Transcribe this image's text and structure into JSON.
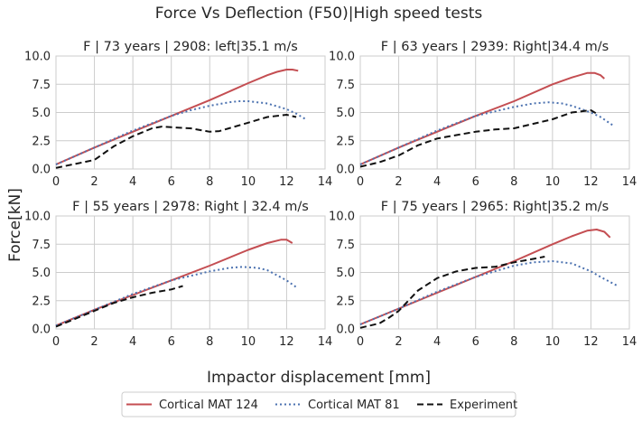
{
  "chart_data": {
    "type": "line",
    "title": "Force Vs Deflection (F50)|High speed tests",
    "xlabel": "Impactor displacement [mm]",
    "ylabel": "Force[kN]",
    "legend_placement": "bottom-center",
    "grid": true,
    "styles": {
      "Cortical MAT 124": {
        "color": "#c44e52",
        "dash": "solid"
      },
      "Cortical MAT 81": {
        "color": "#4c72b0",
        "dash": "dotted"
      },
      "Experiment": {
        "color": "#111111",
        "dash": "dashed"
      }
    },
    "legend": [
      "Cortical MAT 124",
      "Cortical MAT 81",
      "Experiment"
    ],
    "xlim": [
      0,
      14
    ],
    "ylim": [
      0,
      10
    ],
    "xticks": [
      "0",
      "2",
      "4",
      "6",
      "8",
      "10",
      "12",
      "14"
    ],
    "yticks": [
      "0.0",
      "2.5",
      "5.0",
      "7.5",
      "10.0"
    ],
    "panels": [
      {
        "title": "F | 73 years | 2908: left|35.1 m/s",
        "series": [
          {
            "name": "Cortical MAT 124",
            "x": [
              0,
              2,
              4,
              6,
              8,
              10,
              11,
              11.5,
              12,
              12.3,
              12.6
            ],
            "y": [
              0.4,
              1.9,
              3.3,
              4.7,
              6.1,
              7.6,
              8.3,
              8.6,
              8.8,
              8.8,
              8.7
            ]
          },
          {
            "name": "Cortical MAT 81",
            "x": [
              0,
              2,
              4,
              6,
              7,
              8,
              9,
              9.5,
              10,
              11,
              12,
              12.5,
              13
            ],
            "y": [
              0.4,
              1.9,
              3.4,
              4.7,
              5.2,
              5.6,
              5.9,
              6.0,
              6.0,
              5.8,
              5.3,
              4.9,
              4.4
            ]
          },
          {
            "name": "Experiment",
            "x": [
              0,
              2,
              3,
              4,
              5,
              5.5,
              6,
              7,
              8,
              8.5,
              9,
              10,
              11,
              12,
              12.5
            ],
            "y": [
              0.1,
              0.8,
              2.0,
              2.9,
              3.6,
              3.75,
              3.7,
              3.6,
              3.3,
              3.35,
              3.6,
              4.1,
              4.6,
              4.8,
              4.6
            ]
          }
        ]
      },
      {
        "title": "F | 63 years | 2939: Right|34.4 m/s",
        "series": [
          {
            "name": "Cortical MAT 124",
            "x": [
              0,
              2,
              4,
              6,
              8,
              10,
              11,
              11.8,
              12.2,
              12.5,
              12.7
            ],
            "y": [
              0.4,
              1.9,
              3.3,
              4.7,
              6.0,
              7.5,
              8.1,
              8.5,
              8.5,
              8.3,
              8.0
            ]
          },
          {
            "name": "Cortical MAT 81",
            "x": [
              0,
              2,
              4,
              6,
              8,
              9,
              9.8,
              10.5,
              11,
              12,
              12.5,
              13.2
            ],
            "y": [
              0.4,
              1.9,
              3.4,
              4.7,
              5.5,
              5.8,
              5.9,
              5.8,
              5.6,
              5.0,
              4.6,
              3.8
            ]
          },
          {
            "name": "Experiment",
            "x": [
              0,
              1,
              2,
              3,
              4,
              5,
              6,
              7,
              8,
              9,
              10,
              11,
              12,
              12.3
            ],
            "y": [
              0.2,
              0.6,
              1.2,
              2.1,
              2.7,
              3.0,
              3.3,
              3.5,
              3.6,
              4.0,
              4.4,
              5.0,
              5.2,
              4.9
            ]
          }
        ]
      },
      {
        "title": "F | 55 years | 2978: Right | 32.4 m/s",
        "series": [
          {
            "name": "Cortical MAT 124",
            "x": [
              0,
              2,
              4,
              6,
              8,
              10,
              11,
              11.7,
              12,
              12.3
            ],
            "y": [
              0.3,
              1.7,
              3.0,
              4.3,
              5.6,
              7.0,
              7.6,
              7.9,
              7.9,
              7.6
            ]
          },
          {
            "name": "Cortical MAT 81",
            "x": [
              0,
              2,
              4,
              6,
              8,
              9,
              9.7,
              10.5,
              11,
              12,
              12.5
            ],
            "y": [
              0.3,
              1.7,
              3.1,
              4.3,
              5.1,
              5.4,
              5.5,
              5.4,
              5.2,
              4.3,
              3.7
            ]
          },
          {
            "name": "Experiment",
            "x": [
              0,
              1,
              2,
              3,
              4,
              5,
              6,
              6.6
            ],
            "y": [
              0.2,
              0.9,
              1.6,
              2.3,
              2.8,
              3.2,
              3.5,
              3.8
            ]
          }
        ]
      },
      {
        "title": "F | 75 years | 2965: Right|35.2 m/s",
        "series": [
          {
            "name": "Cortical MAT 124",
            "x": [
              0,
              2,
              4,
              6,
              8,
              10,
              11,
              11.8,
              12.3,
              12.7,
              13
            ],
            "y": [
              0.4,
              1.8,
              3.2,
              4.6,
              6.0,
              7.5,
              8.2,
              8.7,
              8.8,
              8.6,
              8.1
            ]
          },
          {
            "name": "Cortical MAT 81",
            "x": [
              0,
              2,
              4,
              6,
              8,
              9,
              10,
              11,
              12,
              12.5,
              13.4
            ],
            "y": [
              0.4,
              1.8,
              3.3,
              4.6,
              5.6,
              5.9,
              6.0,
              5.8,
              5.1,
              4.6,
              3.8
            ]
          },
          {
            "name": "Experiment",
            "x": [
              0,
              1,
              1.5,
              2,
              2.5,
              3,
              4,
              5,
              6,
              7,
              8,
              9,
              9.6
            ],
            "y": [
              0.1,
              0.5,
              1.0,
              1.6,
              2.5,
              3.4,
              4.5,
              5.1,
              5.4,
              5.5,
              5.9,
              6.2,
              6.4
            ]
          }
        ]
      }
    ]
  }
}
